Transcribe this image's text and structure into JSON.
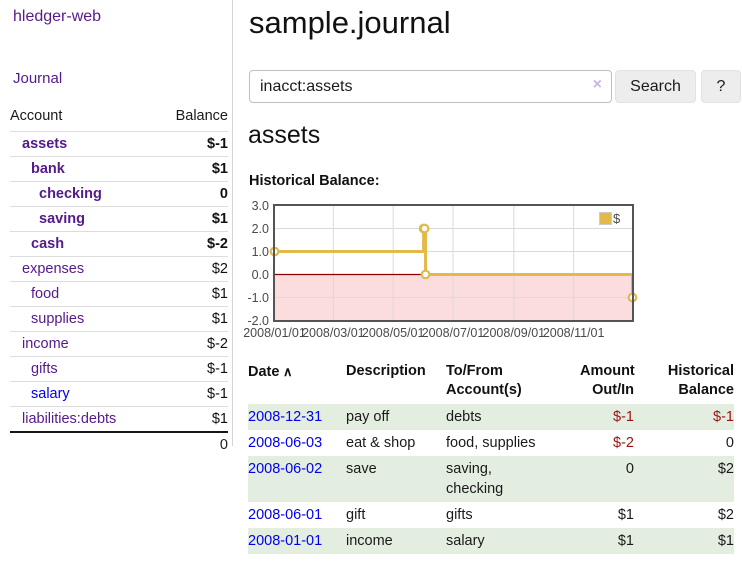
{
  "app": {
    "brand": "hledger-web"
  },
  "nav": {
    "journal": "Journal"
  },
  "sidebar": {
    "columns": {
      "account": "Account",
      "balance": "Balance"
    },
    "rows": [
      {
        "account": "assets",
        "balance": "$-1",
        "level": 1,
        "emphasis": true,
        "link": "visited",
        "balance_tone": "negative"
      },
      {
        "account": "bank",
        "balance": "$1",
        "level": 2,
        "emphasis": true,
        "link": "visited",
        "balance_tone": "plain"
      },
      {
        "account": "checking",
        "balance": "0",
        "level": 3,
        "emphasis": true,
        "link": "visited",
        "balance_tone": "plain"
      },
      {
        "account": "saving",
        "balance": "$1",
        "level": 3,
        "emphasis": true,
        "link": "visited",
        "balance_tone": "plain"
      },
      {
        "account": "cash",
        "balance": "$-2",
        "level": 2,
        "emphasis": true,
        "link": "visited",
        "balance_tone": "negative"
      },
      {
        "account": "expenses",
        "balance": "$2",
        "level": 1,
        "emphasis": false,
        "link": "visited",
        "balance_tone": "plain"
      },
      {
        "account": "food",
        "balance": "$1",
        "level": 2,
        "emphasis": false,
        "link": "visited",
        "balance_tone": "plain"
      },
      {
        "account": "supplies",
        "balance": "$1",
        "level": 2,
        "emphasis": false,
        "link": "visited",
        "balance_tone": "plain"
      },
      {
        "account": "income",
        "balance": "$-2",
        "level": 1,
        "emphasis": false,
        "link": "visited",
        "balance_tone": "negative-muted"
      },
      {
        "account": "gifts",
        "balance": "$-1",
        "level": 2,
        "emphasis": false,
        "link": "visited",
        "balance_tone": "negative-muted"
      },
      {
        "account": "salary",
        "balance": "$-1",
        "level": 2,
        "emphasis": false,
        "link": "unvisited",
        "balance_tone": "negative-muted"
      },
      {
        "account": "liabilities:debts",
        "balance": "$1",
        "level": 1,
        "emphasis": false,
        "link": "visited",
        "balance_tone": "plain"
      }
    ],
    "total": "0"
  },
  "main": {
    "title": "sample.journal",
    "search": {
      "value": "inacct:assets",
      "clear_label": "×",
      "submit_label": "Search",
      "help_label": "?"
    },
    "heading": "assets",
    "chart_title": "Historical Balance:"
  },
  "chart_data": {
    "type": "line",
    "step": true,
    "title": "Historical Balance",
    "xlabel": "",
    "ylabel": "",
    "series": [
      {
        "name": "$",
        "color": "#e3b94a",
        "points": [
          [
            "2008-01-01",
            1
          ],
          [
            "2008-06-01",
            2
          ],
          [
            "2008-06-02",
            2
          ],
          [
            "2008-06-03",
            0
          ],
          [
            "2008-12-31",
            -1
          ]
        ]
      }
    ],
    "xlim": [
      "2008-01-01",
      "2008-12-31"
    ],
    "ylim": [
      -2,
      3
    ],
    "x_ticks": [
      "2008/01/01",
      "2008/03/01",
      "2008/05/01",
      "2008/07/01",
      "2008/09/01",
      "2008/11/01"
    ],
    "y_ticks": [
      3.0,
      2.0,
      1.0,
      0.0,
      -1.0,
      -2.0
    ],
    "grid": true,
    "legend_position": "top-right",
    "negative_region_color": "#fcdddd",
    "zero_line_color": "#8b0000"
  },
  "register": {
    "headers": [
      {
        "lines": [
          "Date"
        ],
        "sort_indicator": "∧",
        "align": "left"
      },
      {
        "lines": [
          "Description"
        ],
        "align": "left"
      },
      {
        "lines": [
          "To/From",
          "Account(s)"
        ],
        "align": "left"
      },
      {
        "lines": [
          "Amount",
          "Out/In"
        ],
        "align": "right"
      },
      {
        "lines": [
          "Historical",
          "Balance"
        ],
        "align": "right"
      }
    ],
    "rows": [
      {
        "date": "2008-12-31",
        "description": "pay off",
        "accounts": "debts",
        "amount": "$-1",
        "balance": "$-1"
      },
      {
        "date": "2008-06-03",
        "description": "eat & shop",
        "accounts": "food, supplies",
        "amount": "$-2",
        "balance": "0"
      },
      {
        "date": "2008-06-02",
        "description": "save",
        "accounts": "saving, checking",
        "amount": "0",
        "balance": "$2"
      },
      {
        "date": "2008-06-01",
        "description": "gift",
        "accounts": "gifts",
        "amount": "$1",
        "balance": "$2"
      },
      {
        "date": "2008-01-01",
        "description": "income",
        "accounts": "salary",
        "amount": "$1",
        "balance": "$1"
      }
    ]
  },
  "colors": {
    "link_visited_purple": "#551a8b",
    "link_unvisited_blue": "#0000ee",
    "negative_strong": "#961414",
    "negative_muted": "#c57078",
    "row_stripe_green": "#e3eee0",
    "chart_line_gold": "#e3b94a",
    "chart_negative_fill": "#fcdddd",
    "chart_zero_line": "#8b0000"
  }
}
